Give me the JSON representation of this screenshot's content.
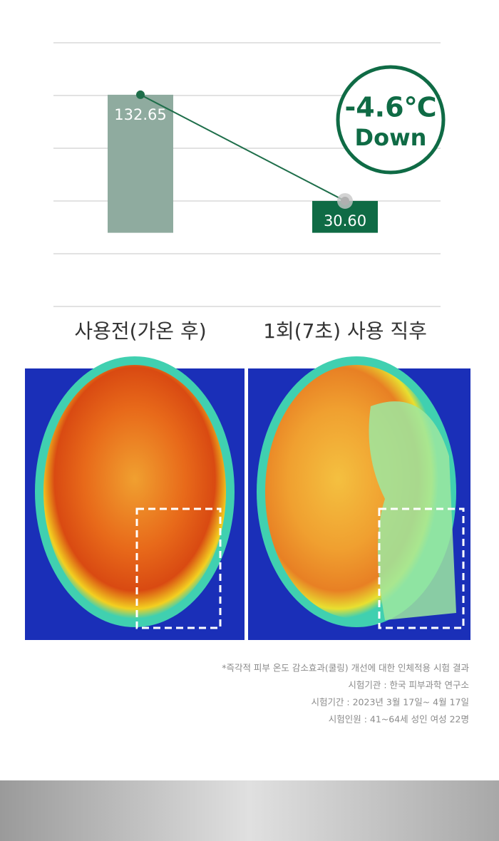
{
  "chart_data": {
    "type": "bar",
    "categories": [
      "사용전(가온 후)",
      "1회(7초) 사용 직후"
    ],
    "values": [
      132.65,
      30.6
    ],
    "value_labels": [
      "132.65",
      "30.60"
    ],
    "colors": [
      "#8fab9f",
      "#0f6b45"
    ],
    "line_color": "#1e6e4a",
    "ylim": [
      -70.8,
      182.6
    ],
    "grid": true,
    "badge": {
      "value": "-4.6℃",
      "label": "Down"
    }
  },
  "footnotes": [
    "*즉각적 피부 온도 감소효과(쿨링) 개선에 대한 인체적용 시험 결과",
    "시험기관 : 한국 피부과학 연구소",
    "시험기간 : 2023년 3월 17일~ 4월 17일",
    "시험인원 : 41~64세 성인 여성 22명"
  ]
}
